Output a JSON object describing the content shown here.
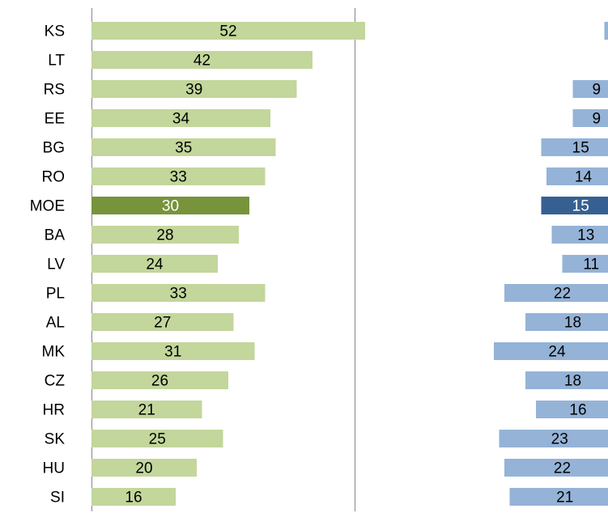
{
  "chart_data": {
    "type": "bar",
    "orientation": "horizontal",
    "categories": [
      "KS",
      "LT",
      "RS",
      "EE",
      "BG",
      "RO",
      "MOE",
      "BA",
      "LV",
      "PL",
      "AL",
      "MK",
      "CZ",
      "HR",
      "SK",
      "HU",
      "SI"
    ],
    "xlim": [
      0,
      50
    ],
    "xticks": [
      0,
      50
    ],
    "grid": true,
    "series": [
      {
        "values": [
          52,
          42,
          39,
          34,
          35,
          33,
          30,
          28,
          24,
          33,
          27,
          31,
          26,
          21,
          25,
          20,
          16
        ],
        "colors": [
          "#c3d69b",
          "#c3d69b",
          "#c3d69b",
          "#c3d69b",
          "#c3d69b",
          "#c3d69b",
          "#77933c",
          "#c3d69b",
          "#c3d69b",
          "#c3d69b",
          "#c3d69b",
          "#c3d69b",
          "#c3d69b",
          "#c3d69b",
          "#c3d69b",
          "#c3d69b",
          "#c3d69b"
        ]
      },
      {
        "values": [
          3,
          1,
          9,
          9,
          15,
          14,
          15,
          13,
          11,
          22,
          18,
          24,
          18,
          16,
          23,
          22,
          21
        ],
        "reversed": true,
        "colors": [
          "#95b3d7",
          "#95b3d7",
          "#95b3d7",
          "#95b3d7",
          "#95b3d7",
          "#95b3d7",
          "#376092",
          "#95b3d7",
          "#95b3d7",
          "#95b3d7",
          "#95b3d7",
          "#95b3d7",
          "#95b3d7",
          "#95b3d7",
          "#95b3d7",
          "#95b3d7",
          "#95b3d7"
        ]
      }
    ]
  }
}
